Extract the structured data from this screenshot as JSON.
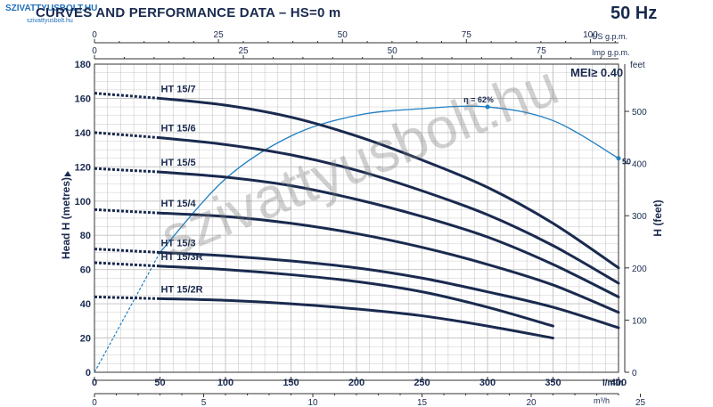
{
  "header": {
    "logo_text": "SZIVATTYUSBOLT.HU",
    "logo_sub": "szivattyusbolt.hu",
    "title": "CURVES AND PERFORMANCE DATA  –  HS=0 m",
    "frequency": "50 Hz"
  },
  "mei_label": "MEI≥ 0.40",
  "watermark": "szivattyusbolt.hu",
  "colors": {
    "curve": "#1a2a4f",
    "efficiency": "#1f7fc2",
    "grid": "#bfbfbf",
    "text": "#1a2a4f"
  },
  "chart_data": {
    "type": "line",
    "x_unit": "l/min",
    "xlim": [
      0,
      400
    ],
    "x_ticks": [
      0,
      50,
      100,
      150,
      200,
      250,
      300,
      350,
      400
    ],
    "ylabel": "Head H (metres)",
    "ylim": [
      0,
      180
    ],
    "y_ticks": [
      0,
      20,
      40,
      60,
      80,
      100,
      120,
      140,
      160,
      180
    ],
    "y2label": "H (feet)",
    "y2_ticks": [
      0,
      100,
      200,
      300,
      400,
      500
    ],
    "y2_unit": "feet",
    "top_axes": [
      {
        "unit": "US g.p.m.",
        "ticks": [
          0,
          25,
          50,
          75,
          100
        ]
      },
      {
        "unit": "Imp g.p.m.",
        "ticks": [
          0,
          25,
          50,
          75
        ]
      }
    ],
    "bottom_axis2": {
      "unit": "m³/h",
      "ticks": [
        0,
        5,
        10,
        15,
        20,
        25
      ]
    },
    "grid": true,
    "series": [
      {
        "name": "HT 15/7",
        "dashed": {
          "x": [
            0,
            50
          ],
          "y": [
            163,
            160
          ]
        },
        "x": [
          50,
          100,
          150,
          200,
          250,
          300,
          350,
          400
        ],
        "y": [
          160,
          156,
          149,
          138,
          124,
          108,
          87,
          61
        ]
      },
      {
        "name": "HT 15/6",
        "dashed": {
          "x": [
            0,
            50
          ],
          "y": [
            140,
            137
          ]
        },
        "x": [
          50,
          100,
          150,
          200,
          250,
          300,
          350,
          400
        ],
        "y": [
          137,
          133,
          127,
          118,
          106,
          92,
          74,
          52
        ]
      },
      {
        "name": "HT 15/5",
        "dashed": {
          "x": [
            0,
            50
          ],
          "y": [
            119,
            117
          ]
        },
        "x": [
          50,
          100,
          150,
          200,
          250,
          300,
          350,
          400
        ],
        "y": [
          117,
          114,
          109,
          101,
          91,
          79,
          63,
          44
        ]
      },
      {
        "name": "HT 15/4",
        "dashed": {
          "x": [
            0,
            50
          ],
          "y": [
            95,
            93
          ]
        },
        "x": [
          50,
          100,
          150,
          200,
          250,
          300,
          350,
          400
        ],
        "y": [
          93,
          91,
          87,
          81,
          73,
          63,
          51,
          35
        ]
      },
      {
        "name": "HT 15/3",
        "dashed": {
          "x": [
            0,
            50
          ],
          "y": [
            72,
            70
          ]
        },
        "x": [
          50,
          100,
          150,
          200,
          250,
          300,
          350,
          400
        ],
        "y": [
          70,
          68,
          65,
          61,
          55,
          47,
          38,
          26
        ]
      },
      {
        "name": "HT 15/3R",
        "dashed": {
          "x": [
            0,
            50
          ],
          "y": [
            64,
            62
          ]
        },
        "x": [
          50,
          100,
          150,
          200,
          250,
          300,
          350
        ],
        "y": [
          62,
          60,
          57,
          53,
          47,
          38,
          27
        ]
      },
      {
        "name": "HT 15/2R",
        "dashed": {
          "x": [
            0,
            50
          ],
          "y": [
            44,
            43
          ]
        },
        "x": [
          50,
          100,
          150,
          200,
          250,
          300,
          350
        ],
        "y": [
          43,
          42,
          40,
          37,
          33,
          27,
          20
        ]
      }
    ],
    "efficiency": {
      "label": "η = 62%",
      "end_label": "50",
      "peak": [
        300,
        155
      ],
      "dashed": {
        "x": [
          0,
          50
        ],
        "y": [
          0,
          70
        ]
      },
      "x": [
        50,
        100,
        150,
        200,
        250,
        300,
        350,
        400
      ],
      "y": [
        70,
        113,
        138,
        150,
        154,
        155,
        147,
        125
      ]
    }
  }
}
